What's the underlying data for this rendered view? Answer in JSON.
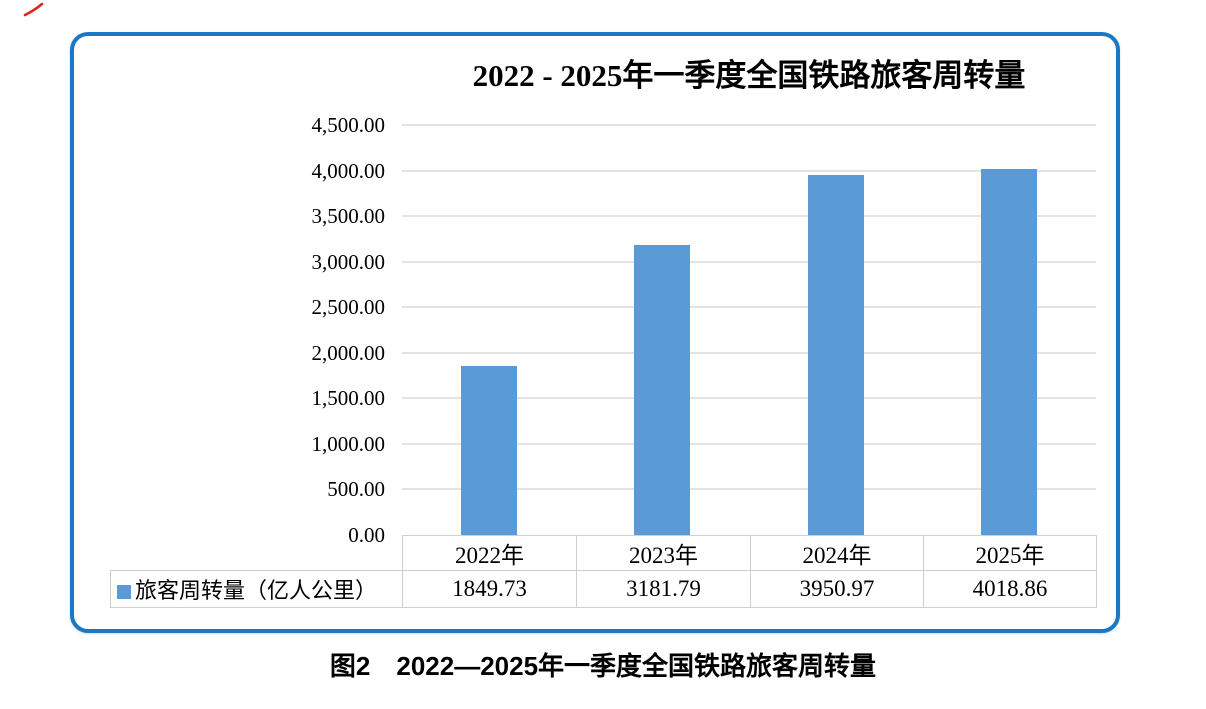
{
  "figure": {
    "caption": "图2　2022—2025年一季度全国铁路旅客周转量"
  },
  "chart": {
    "title": "2022 - 2025年一季度全国铁路旅客周转量",
    "legend": {
      "label": "旅客周转量（亿人公里）",
      "swatch_color": "#5b9bd5"
    },
    "colors": {
      "bar": "#5b9bd5",
      "frame_border": "#1c78c4",
      "gridline": "#e4e4e4",
      "table_border": "#cfcfcf",
      "pen_mark": "#e02222"
    }
  },
  "chart_data": {
    "type": "bar",
    "title": "2022 - 2025年一季度全国铁路旅客周转量",
    "categories": [
      "2022年",
      "2023年",
      "2024年",
      "2025年"
    ],
    "series": [
      {
        "name": "旅客周转量（亿人公里）",
        "values": [
          1849.73,
          3181.79,
          3950.97,
          4018.86
        ]
      }
    ],
    "value_labels": [
      "1849.73",
      "3181.79",
      "3950.97",
      "4018.86"
    ],
    "ylim": [
      0,
      4500
    ],
    "y_tick_step": 500,
    "y_tick_labels": [
      "0.00",
      "500.00",
      "1,000.00",
      "1,500.00",
      "2,000.00",
      "2,500.00",
      "3,000.00",
      "3,500.00",
      "4,000.00",
      "4,500.00"
    ],
    "grid": true,
    "bar_color": "#5b9bd5",
    "legend_position": "bottom-left of data table",
    "data_table_shown": true
  }
}
